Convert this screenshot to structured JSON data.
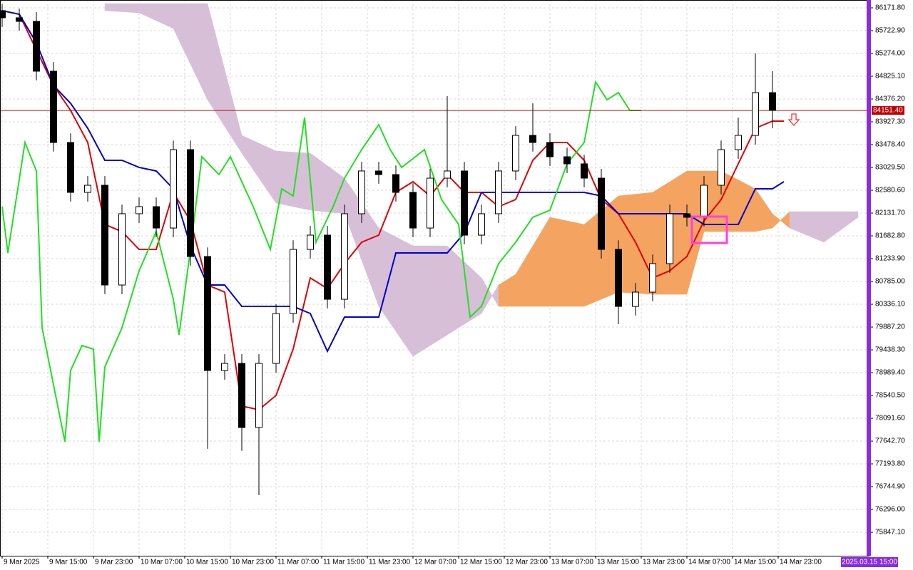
{
  "chart_data": {
    "type": "candlestick",
    "x": [
      0,
      3,
      6,
      9,
      12,
      15,
      18,
      21,
      24,
      27,
      30,
      33,
      36,
      39,
      42,
      45,
      48,
      51,
      54,
      57,
      60,
      63,
      66,
      69,
      72,
      75,
      78,
      81,
      84,
      87,
      90,
      93,
      96,
      99,
      102,
      105,
      108,
      111,
      114,
      117,
      120,
      123,
      126,
      129,
      132,
      135
    ],
    "open": [
      86116,
      85976,
      85905,
      84924,
      83521,
      82539,
      82679,
      80715,
      82118,
      82258,
      81837,
      83380,
      81276,
      79032,
      79172,
      77910,
      79172,
      80154,
      81416,
      81697,
      80434,
      82118,
      82960,
      82889,
      82539,
      81837,
      82819,
      82960,
      81697,
      82118,
      82960,
      83661,
      83521,
      83240,
      83100,
      82819,
      81416,
      80294,
      80575,
      81136,
      82118,
      82048,
      82679,
      83380,
      83661,
      84502
    ],
    "high": [
      86250,
      86156,
      86085,
      85104,
      83701,
      82859,
      82859,
      82298,
      82438,
      82438,
      83560,
      83560,
      81456,
      79352,
      79352,
      79352,
      80334,
      81596,
      81877,
      81877,
      82298,
      83140,
      83140,
      83069,
      82719,
      82999,
      84432,
      83140,
      82298,
      83140,
      83841,
      84292,
      83701,
      83420,
      83280,
      82999,
      81596,
      80755,
      81316,
      82298,
      82298,
      82859,
      83560,
      84012,
      85274,
      84924
    ],
    "low": [
      85796,
      85725,
      84744,
      83341,
      82359,
      82359,
      80535,
      80535,
      81938,
      81657,
      81657,
      81096,
      77490,
      78852,
      77450,
      76577,
      78992,
      79974,
      81236,
      80254,
      80254,
      81938,
      82709,
      82359,
      81657,
      81657,
      82639,
      81517,
      81517,
      81938,
      82780,
      83341,
      83060,
      82920,
      82639,
      81236,
      79944,
      80114,
      80395,
      80956,
      81868,
      81868,
      82499,
      83200,
      83481,
      83800
    ],
    "close": [
      85976,
      85905,
      84924,
      83521,
      82539,
      82679,
      80715,
      82118,
      82258,
      81837,
      83380,
      81276,
      79032,
      79172,
      77910,
      79172,
      80154,
      81416,
      81697,
      80434,
      82118,
      82960,
      82889,
      82539,
      81837,
      82819,
      82960,
      81697,
      82118,
      82960,
      83661,
      83521,
      83240,
      83100,
      82819,
      81416,
      80294,
      80575,
      81136,
      82118,
      82048,
      82679,
      83380,
      83661,
      84502,
      84152
    ],
    "bull_color": "#ffffff",
    "bear_color": "#000000",
    "xlim": [
      -0.375,
      152
    ],
    "ylim": [
      75385,
      86326
    ],
    "grid": true,
    "xticks": [
      {
        "value": 0,
        "label": "9 Mar 2025"
      },
      {
        "value": 8,
        "label": "9 Mar 15:00"
      },
      {
        "value": 16,
        "label": "9 Mar 23:00"
      },
      {
        "value": 24,
        "label": "10 Mar 07:00"
      },
      {
        "value": 32,
        "label": "10 Mar 15:00"
      },
      {
        "value": 40,
        "label": "10 Mar 23:00"
      },
      {
        "value": 48,
        "label": "11 Mar 07:00"
      },
      {
        "value": 56,
        "label": "11 Mar 15:00"
      },
      {
        "value": 64,
        "label": "11 Mar 23:00"
      },
      {
        "value": 72,
        "label": "12 Mar 07:00"
      },
      {
        "value": 80,
        "label": "12 Mar 15:00"
      },
      {
        "value": 88,
        "label": "12 Mar 23:00"
      },
      {
        "value": 96,
        "label": "13 Mar 07:00"
      },
      {
        "value": 104,
        "label": "13 Mar 15:00"
      },
      {
        "value": 112,
        "label": "13 Mar 23:00"
      },
      {
        "value": 120,
        "label": "14 Mar 07:00"
      },
      {
        "value": 128,
        "label": "14 Mar 15:00"
      },
      {
        "value": 136,
        "label": "14 Mar 23:00"
      }
    ],
    "yticks": [
      {
        "value": 86171.8,
        "label": "86171.80"
      },
      {
        "value": 85722.9,
        "label": "85722.90"
      },
      {
        "value": 85274,
        "label": "85274.00"
      },
      {
        "value": 84825.1,
        "label": "84825.10"
      },
      {
        "value": 84376.2,
        "label": "84376.20"
      },
      {
        "value": 83927.3,
        "label": "83927.30"
      },
      {
        "value": 83478.4,
        "label": "83478.40"
      },
      {
        "value": 83029.5,
        "label": "83029.50"
      },
      {
        "value": 82580.6,
        "label": "82580.60"
      },
      {
        "value": 82131.7,
        "label": "82131.70"
      },
      {
        "value": 81682.8,
        "label": "81682.80"
      },
      {
        "value": 81233.9,
        "label": "81233.90"
      },
      {
        "value": 80785,
        "label": "80785.00"
      },
      {
        "value": 80336.1,
        "label": "80336.10"
      },
      {
        "value": 79887.2,
        "label": "79887.20"
      },
      {
        "value": 79438.3,
        "label": "79438.30"
      },
      {
        "value": 78989.4,
        "label": "78989.40"
      },
      {
        "value": 78540.5,
        "label": "78540.50"
      },
      {
        "value": 78091.6,
        "label": "78091.60"
      },
      {
        "value": 77642.7,
        "label": "77642.70"
      },
      {
        "value": 77193.8,
        "label": "77193.80"
      },
      {
        "value": 76744.9,
        "label": "76744.90"
      },
      {
        "value": 76296,
        "label": "76296.00"
      },
      {
        "value": 75847.1,
        "label": "75847.10"
      }
    ],
    "current_price": {
      "value": 84151.4,
      "label": "84151.40",
      "color": "#c00000"
    },
    "cursor_label": "2025.03.15 15:00",
    "cloud": {
      "x": [
        18,
        24,
        30,
        36,
        42,
        48,
        54,
        60,
        66,
        72,
        78,
        84,
        87,
        90,
        96,
        102,
        108,
        114,
        120,
        123,
        126,
        132,
        135,
        138,
        144,
        150
      ],
      "span_a": [
        86116,
        86074,
        85765,
        84362,
        83310,
        82328,
        82188,
        82118,
        80294,
        79312,
        79733,
        80154,
        80715,
        80925,
        82047,
        81907,
        82468,
        82538,
        82959,
        82959,
        82959,
        82608,
        82118,
        81837,
        81557,
        82047
      ],
      "span_b": [
        86256,
        86256,
        86256,
        86256,
        83661,
        83352,
        83310,
        82819,
        81837,
        81486,
        81486,
        80855,
        80294,
        80294,
        80294,
        80294,
        80575,
        80532,
        80532,
        81767,
        81767,
        81767,
        81837,
        82160,
        82160,
        82160
      ],
      "up_color": "#f4a460",
      "down_color": "#d8bfd8"
    },
    "lines": [
      {
        "color": "#e00000",
        "x": [
          3,
          6,
          9,
          12,
          15,
          18,
          21,
          24,
          27,
          30,
          33,
          36,
          39,
          42,
          45,
          48,
          51,
          54,
          57,
          60,
          63,
          66,
          69,
          72,
          75,
          78,
          81,
          84,
          87,
          90,
          93,
          96,
          99,
          102,
          105,
          108,
          111,
          114,
          117,
          120,
          123,
          126,
          129,
          132,
          135,
          137
        ],
        "values": [
          86046,
          85344,
          84643,
          84152,
          83521,
          81907,
          81767,
          81416,
          81416,
          82539,
          81978,
          80715,
          80575,
          78331,
          78261,
          78541,
          79453,
          80855,
          80645,
          81136,
          81557,
          81697,
          82539,
          82749,
          82468,
          82889,
          82539,
          82539,
          82258,
          82398,
          83170,
          83521,
          83521,
          83170,
          82398,
          82118,
          81557,
          80855,
          80995,
          81276,
          81978,
          82398,
          83100,
          83801,
          83942,
          83942
        ]
      },
      {
        "color": "#0000cd",
        "x": [
          0,
          3,
          6,
          9,
          12,
          15,
          18,
          21,
          24,
          27,
          30,
          33,
          36,
          39,
          42,
          45,
          48,
          51,
          54,
          57,
          60,
          63,
          66,
          69,
          72,
          75,
          78,
          81,
          84,
          87,
          90,
          93,
          96,
          99,
          102,
          105,
          108,
          111,
          114,
          117,
          120,
          123,
          126,
          129,
          132,
          135,
          137
        ],
        "values": [
          86116,
          86046,
          85485,
          84643,
          84292,
          83801,
          83170,
          83170,
          83030,
          82960,
          82609,
          81486,
          80715,
          80715,
          80294,
          80294,
          80294,
          80294,
          80154,
          79410,
          80084,
          80084,
          80084,
          81346,
          81346,
          81346,
          81346,
          81739,
          82539,
          82539,
          82539,
          82539,
          82539,
          82539,
          82539,
          82468,
          82118,
          82118,
          82118,
          82118,
          82118,
          81907,
          81907,
          81907,
          82609,
          82609,
          82749
        ]
      },
      {
        "color": "#22e022",
        "x": [
          0,
          1,
          4,
          6,
          7,
          11,
          12,
          14,
          16,
          17,
          18,
          21,
          24,
          27,
          30,
          31,
          33,
          35,
          38,
          40,
          44,
          47,
          49,
          51,
          53,
          55,
          58,
          60,
          63,
          66,
          68,
          70,
          74,
          77,
          80,
          82,
          84,
          87,
          90,
          93,
          96,
          99,
          102,
          104,
          106,
          108,
          110,
          112
        ],
        "values": [
          82258,
          81346,
          83521,
          82960,
          79873,
          77630,
          79032,
          79523,
          79453,
          77630,
          79102,
          79873,
          80995,
          81767,
          80434,
          79733,
          81416,
          83240,
          82889,
          83240,
          82258,
          81416,
          82609,
          82468,
          84012,
          81557,
          82258,
          82819,
          83380,
          83871,
          83380,
          83030,
          83380,
          82398,
          81907,
          80084,
          80294,
          81136,
          81557,
          82048,
          82188,
          83100,
          83521,
          84713,
          84362,
          84502,
          84152,
          84152
        ]
      }
    ]
  }
}
